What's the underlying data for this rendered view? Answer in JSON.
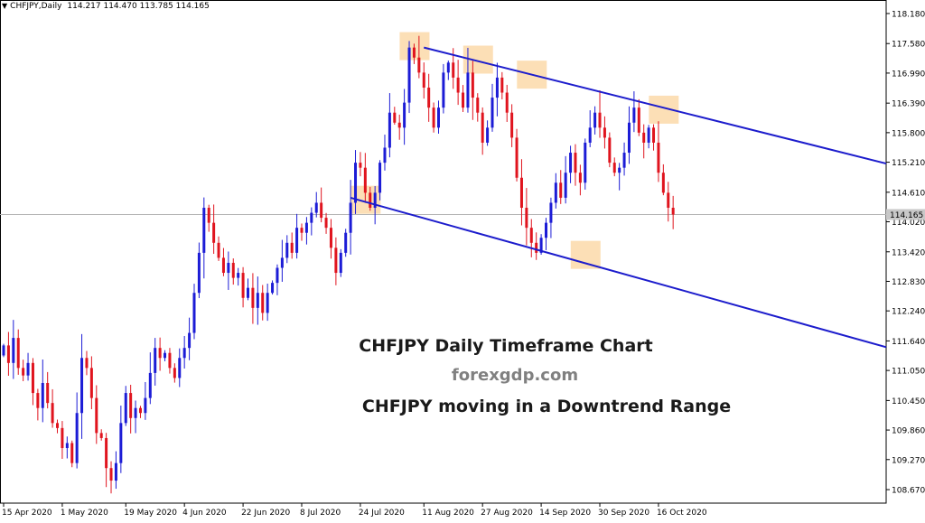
{
  "symbol_bar": {
    "arrow": "▼",
    "symbol": "CHFJPY,Daily",
    "ohlc": "114.217 114.470 113.785 114.165"
  },
  "annotations": {
    "title": "CHFJPY Daily Timeframe Chart",
    "site": "forexgdp.com",
    "subtitle": "CHFJPY moving in a Downtrend Range"
  },
  "chart_data": {
    "type": "candlestick",
    "symbol": "CHFJPY",
    "timeframe": "Daily",
    "ylim": [
      108.4,
      118.45
    ],
    "y_ticks": [
      118.18,
      117.58,
      116.99,
      116.39,
      115.8,
      115.21,
      114.61,
      114.02,
      113.42,
      112.83,
      112.24,
      111.64,
      111.05,
      110.45,
      109.86,
      109.27,
      108.67
    ],
    "x_ticks": [
      "15 Apr 2020",
      "1 May 2020",
      "19 May 2020",
      "4 Jun 2020",
      "22 Jun 2020",
      "8 Jul 2020",
      "24 Jul 2020",
      "11 Aug 2020",
      "27 Aug 2020",
      "14 Sep 2020",
      "30 Sep 2020",
      "16 Oct 2020"
    ],
    "current_price": 114.165,
    "current_price_label": "114.165",
    "colors": {
      "bull": "#1c1cd6",
      "bear": "#e0141e",
      "trendline": "#1c1ccc",
      "highlight": "#fbd7a4",
      "price_line": "#b4b4b4"
    },
    "closes": [
      111.55,
      111.2,
      111.7,
      111.1,
      110.95,
      111.2,
      110.6,
      110.3,
      110.8,
      110.4,
      110.0,
      109.9,
      109.5,
      109.6,
      109.2,
      110.2,
      111.3,
      111.1,
      110.5,
      109.8,
      109.7,
      109.1,
      108.85,
      109.2,
      110.0,
      110.6,
      110.1,
      110.3,
      110.2,
      110.5,
      111.0,
      111.5,
      111.3,
      111.4,
      111.1,
      110.9,
      111.3,
      111.5,
      111.8,
      112.6,
      113.4,
      114.3,
      114.0,
      113.6,
      113.3,
      113.0,
      113.2,
      112.9,
      113.0,
      112.5,
      112.7,
      112.3,
      112.6,
      112.2,
      112.6,
      112.8,
      113.1,
      113.3,
      113.6,
      113.4,
      113.9,
      113.8,
      114.0,
      114.2,
      114.4,
      114.1,
      113.9,
      113.5,
      113.0,
      113.4,
      113.8,
      114.4,
      115.2,
      115.1,
      114.6,
      114.3,
      114.6,
      115.2,
      115.5,
      116.2,
      116.0,
      115.9,
      116.4,
      117.5,
      117.3,
      117.0,
      116.7,
      116.3,
      115.9,
      116.3,
      117.0,
      117.2,
      116.9,
      116.6,
      116.3,
      117.0,
      116.5,
      116.2,
      115.6,
      115.9,
      116.5,
      116.9,
      116.6,
      116.2,
      115.7,
      114.9,
      114.3,
      113.9,
      113.6,
      113.4,
      113.7,
      114.0,
      114.4,
      114.8,
      114.5,
      115.0,
      115.4,
      115.0,
      114.8,
      115.6,
      115.9,
      116.2,
      115.9,
      115.7,
      115.2,
      115.0,
      115.1,
      115.4,
      116.0,
      116.3,
      115.8,
      115.6,
      115.9,
      115.6,
      115.0,
      114.6,
      114.3,
      114.165
    ]
  }
}
